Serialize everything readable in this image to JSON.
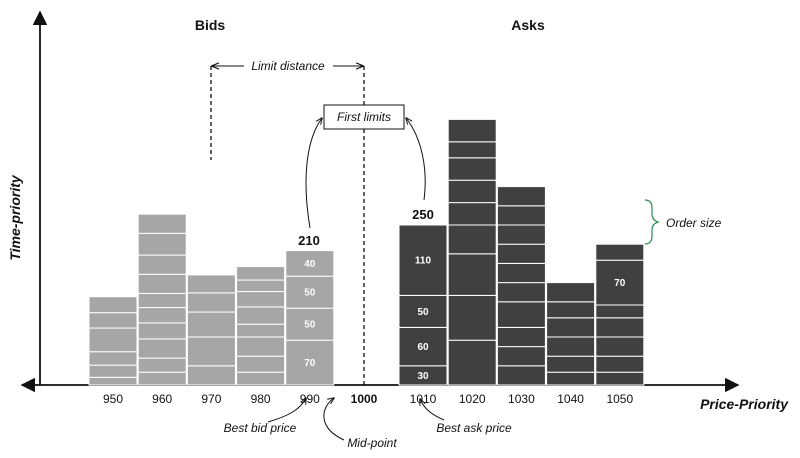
{
  "titles": {
    "bids": "Bids",
    "asks": "Asks"
  },
  "axes": {
    "x_label": "Price-Priority",
    "y_label": "Time-priority"
  },
  "annotations": {
    "limit_distance": "Limit distance",
    "first_limits": "First limits",
    "order_size": "Order size",
    "best_bid_price": "Best bid price",
    "mid_point": "Mid-point",
    "best_ask_price": "Best ask price"
  },
  "mid_price": "1000",
  "colors": {
    "bid_fill": "#a6a6a6",
    "ask_fill": "#404040",
    "separator": "#ffffff"
  },
  "bids": [
    {
      "price": "950",
      "segments": [
        {
          "size": 12
        },
        {
          "size": 19
        },
        {
          "size": 21
        },
        {
          "size": 37
        },
        {
          "size": 24
        },
        {
          "size": 25
        }
      ]
    },
    {
      "price": "960",
      "segments": [
        {
          "size": 20
        },
        {
          "size": 22
        },
        {
          "size": 30
        },
        {
          "size": 25
        },
        {
          "size": 24
        },
        {
          "size": 22
        },
        {
          "size": 30
        },
        {
          "size": 30
        },
        {
          "size": 34
        },
        {
          "size": 30
        }
      ]
    },
    {
      "price": "970",
      "segments": [
        {
          "size": 30
        },
        {
          "size": 45
        },
        {
          "size": 39
        },
        {
          "size": 30
        },
        {
          "size": 28
        }
      ]
    },
    {
      "price": "980",
      "segments": [
        {
          "size": 20
        },
        {
          "size": 25
        },
        {
          "size": 30
        },
        {
          "size": 20
        },
        {
          "size": 27
        },
        {
          "size": 24
        },
        {
          "size": 18
        },
        {
          "size": 21
        }
      ]
    },
    {
      "price": "990",
      "total": "210",
      "segments": [
        {
          "size": 70,
          "label": "70"
        },
        {
          "size": 50,
          "label": "50"
        },
        {
          "size": 50,
          "label": "50"
        },
        {
          "size": 40,
          "label": "40"
        }
      ]
    }
  ],
  "asks": [
    {
      "price": "1010",
      "total": "250",
      "segments": [
        {
          "size": 30,
          "label": "30"
        },
        {
          "size": 60,
          "label": "60"
        },
        {
          "size": 50,
          "label": "50"
        },
        {
          "size": 110,
          "label": "110"
        }
      ]
    },
    {
      "price": "1020",
      "segments": [
        {
          "size": 70
        },
        {
          "size": 70
        },
        {
          "size": 65
        },
        {
          "size": 45
        },
        {
          "size": 35
        },
        {
          "size": 35
        },
        {
          "size": 35
        },
        {
          "size": 25
        },
        {
          "size": 35
        }
      ]
    },
    {
      "price": "1030",
      "segments": [
        {
          "size": 30
        },
        {
          "size": 30
        },
        {
          "size": 30
        },
        {
          "size": 40
        },
        {
          "size": 30
        },
        {
          "size": 30
        },
        {
          "size": 30
        },
        {
          "size": 30
        },
        {
          "size": 30
        },
        {
          "size": 30
        }
      ]
    },
    {
      "price": "1040",
      "segments": [
        {
          "size": 20
        },
        {
          "size": 25
        },
        {
          "size": 30
        },
        {
          "size": 30
        },
        {
          "size": 25
        },
        {
          "size": 30
        }
      ]
    },
    {
      "price": "1050",
      "segments": [
        {
          "size": 20
        },
        {
          "size": 25
        },
        {
          "size": 30
        },
        {
          "size": 30
        },
        {
          "size": 20
        },
        {
          "size": 70,
          "label": "70"
        },
        {
          "size": 25
        }
      ]
    }
  ]
}
